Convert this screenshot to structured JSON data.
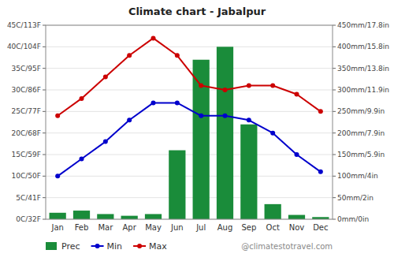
{
  "chart_data": {
    "type": "bar",
    "title": "Climate chart - Jabalpur",
    "categories": [
      "Jan",
      "Feb",
      "Mar",
      "Apr",
      "May",
      "Jun",
      "Jul",
      "Aug",
      "Sep",
      "Oct",
      "Nov",
      "Dec"
    ],
    "series": [
      {
        "name": "Prec",
        "type": "bar",
        "axis": "y2",
        "color": "#1a8c3a",
        "values": [
          15,
          20,
          12,
          8,
          12,
          160,
          370,
          400,
          220,
          35,
          10,
          5
        ]
      },
      {
        "name": "Min",
        "type": "line",
        "color": "#0000cc",
        "marker": "circle",
        "line_style": "solid",
        "values": [
          10,
          14,
          18,
          23,
          27,
          27,
          24,
          24,
          23,
          20,
          15,
          11
        ]
      },
      {
        "name": "Max",
        "type": "line",
        "color": "#cc0000",
        "marker": "circle",
        "line_style": "solid",
        "values": [
          24,
          28,
          33,
          38,
          42,
          38,
          31,
          30,
          31,
          31,
          29,
          25
        ]
      }
    ],
    "ylim": [
      0,
      45
    ],
    "yticks": [
      {
        "value": 0,
        "label": "0C/32F"
      },
      {
        "value": 5,
        "label": "5C/41F"
      },
      {
        "value": 10,
        "label": "10C/50F"
      },
      {
        "value": 15,
        "label": "15C/59F"
      },
      {
        "value": 20,
        "label": "20C/68F"
      },
      {
        "value": 25,
        "label": "25C/77F"
      },
      {
        "value": 30,
        "label": "30C/86F"
      },
      {
        "value": 35,
        "label": "35C/95F"
      },
      {
        "value": 40,
        "label": "40C/104F"
      },
      {
        "value": 45,
        "label": "45C/113F"
      }
    ],
    "y2lim": [
      0,
      450
    ],
    "y2ticks": [
      {
        "value": 0,
        "label": "0mm/0in"
      },
      {
        "value": 50,
        "label": "50mm/2in"
      },
      {
        "value": 100,
        "label": "100mm/4in"
      },
      {
        "value": 150,
        "label": "150mm/5.9in"
      },
      {
        "value": 200,
        "label": "200mm/7.9in"
      },
      {
        "value": 250,
        "label": "250mm/9.9in"
      },
      {
        "value": 300,
        "label": "300mm/11.9in"
      },
      {
        "value": 350,
        "label": "350mm/13.8in"
      },
      {
        "value": 400,
        "label": "400mm/15.8in"
      },
      {
        "value": 450,
        "label": "450mm/17.8in"
      }
    ],
    "grid": true,
    "legend": "lower left",
    "annotations": [
      "@climatestotravel.com"
    ]
  }
}
